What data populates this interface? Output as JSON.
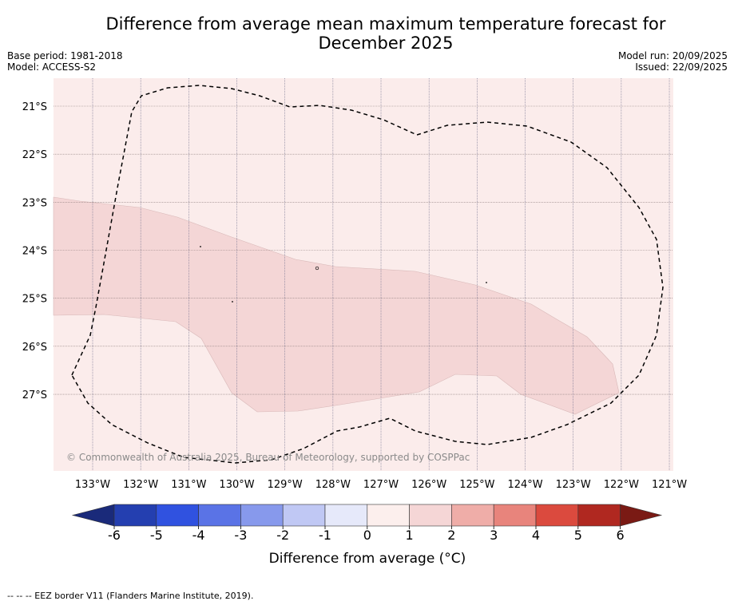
{
  "header": {
    "title_line1": "Difference from average mean maximum temperature forecast for",
    "title_line2": "December 2025",
    "base_period": "Base period: 1981-2018",
    "model": "Model: ACCESS-S2",
    "model_run": "Model run: 20/09/2025",
    "issued": "Issued: 22/09/2025"
  },
  "map": {
    "lat_labels": [
      "21°S",
      "22°S",
      "23°S",
      "24°S",
      "25°S",
      "26°S",
      "27°S"
    ],
    "lon_labels": [
      "133°W",
      "132°W",
      "131°W",
      "130°W",
      "129°W",
      "128°W",
      "127°W",
      "126°W",
      "125°W",
      "124°W",
      "123°W",
      "122°W",
      "121°W"
    ],
    "copyright": "© Commonwealth of Australia 2025, Bureau of Meteorology, supported by COSPPac",
    "background_colour": "#fbeceb",
    "band_colour": "#f4d6d6"
  },
  "colorbar": {
    "ticks": [
      "-6",
      "-5",
      "-4",
      "-3",
      "-2",
      "-1",
      "0",
      "1",
      "2",
      "3",
      "4",
      "5",
      "6"
    ],
    "colors": [
      "#243fb0",
      "#3052e0",
      "#5a73e6",
      "#8799ec",
      "#c0c8f4",
      "#e6e9fa",
      "#fcefed",
      "#f5d6d6",
      "#efada8",
      "#e8847c",
      "#db4a3e",
      "#b02820"
    ],
    "under_color": "#1a2a7a",
    "over_color": "#7a1a14",
    "label": "Difference from average (°C)"
  },
  "footer": {
    "legend": "--  --  -- EEZ border V11 (Flanders Marine Institute, 2019)."
  }
}
